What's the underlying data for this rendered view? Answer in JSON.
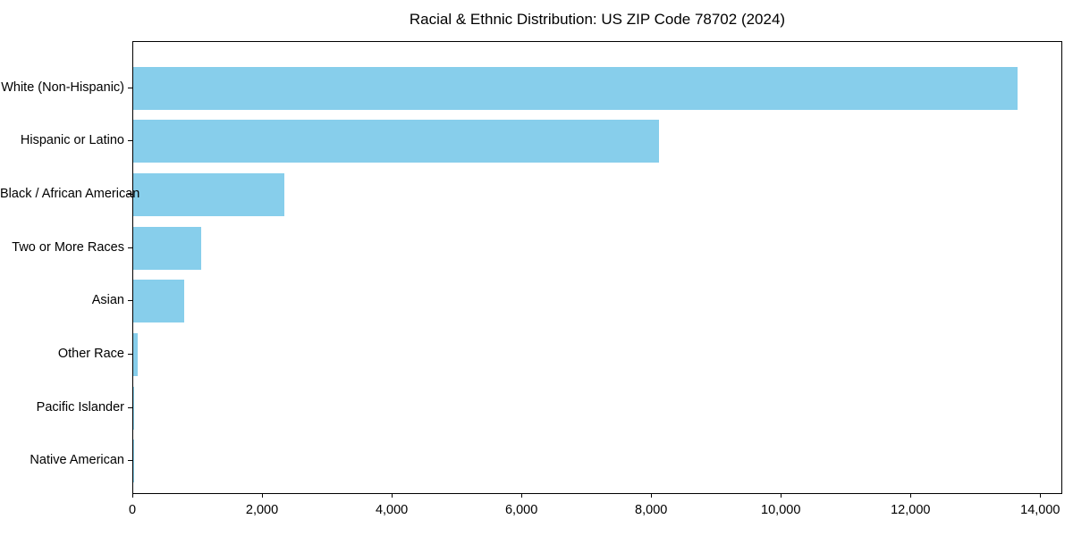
{
  "chart_data": {
    "type": "bar",
    "orientation": "horizontal",
    "title": "Racial & Ethnic Distribution: US ZIP Code 78702 (2024)",
    "categories": [
      "White (Non-Hispanic)",
      "Hispanic or Latino",
      "Black / African American",
      "Two or More Races",
      "Asian",
      "Other Race",
      "Pacific Islander",
      "Native American"
    ],
    "values": [
      13640,
      8110,
      2330,
      1050,
      785,
      70,
      15,
      5
    ],
    "xlabel": "",
    "ylabel": "",
    "xlim": [
      0,
      14340
    ],
    "x_ticks": [
      0,
      2000,
      4000,
      6000,
      8000,
      10000,
      12000,
      14000
    ],
    "x_tick_labels": [
      "0",
      "2,000",
      "4,000",
      "6,000",
      "8,000",
      "10,000",
      "12,000",
      "14,000"
    ],
    "bar_color": "#87CEEB",
    "spine_color": "#000000",
    "text_color": "#000000",
    "background_color": "#ffffff",
    "grid": false,
    "legend_position": "none"
  }
}
